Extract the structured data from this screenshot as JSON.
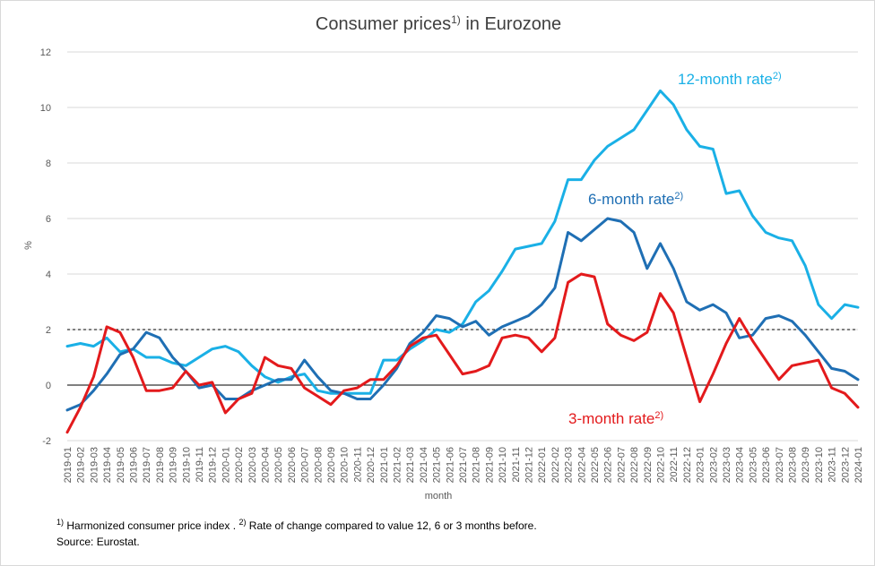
{
  "chart_data": {
    "type": "line",
    "title": "Consumer prices",
    "title_sup": "1)",
    "title_suffix": " in Eurozone",
    "xlabel": "month",
    "ylabel": "%",
    "ylim": [
      -2,
      12
    ],
    "yticks": [
      -2,
      0,
      2,
      4,
      6,
      8,
      10,
      12
    ],
    "grid": true,
    "reference_line": 2,
    "x": [
      "2019-01",
      "2019-02",
      "2019-03",
      "2019-04",
      "2019-05",
      "2019-06",
      "2019-07",
      "2019-08",
      "2019-09",
      "2019-10",
      "2019-11",
      "2019-12",
      "2020-01",
      "2020-02",
      "2020-03",
      "2020-04",
      "2020-05",
      "2020-06",
      "2020-07",
      "2020-08",
      "2020-09",
      "2020-10",
      "2020-11",
      "2020-12",
      "2021-01",
      "2021-02",
      "2021-03",
      "2021-04",
      "2021-05",
      "2021-06",
      "2021-07",
      "2021-08",
      "2021-09",
      "2021-10",
      "2021-11",
      "2021-12",
      "2022-01",
      "2022-02",
      "2022-03",
      "2022-04",
      "2022-05",
      "2022-06",
      "2022-07",
      "2022-08",
      "2022-09",
      "2022-10",
      "2022-11",
      "2022-12",
      "2023-01",
      "2023-02",
      "2023-03",
      "2023-04",
      "2023-05",
      "2023-06",
      "2023-07",
      "2023-08",
      "2023-09",
      "2023-10",
      "2023-11",
      "2023-12",
      "2024-01"
    ],
    "series": [
      {
        "name": "12-month rate",
        "label_sup": "2)",
        "color": "#1ab0e6",
        "values": [
          1.4,
          1.5,
          1.4,
          1.7,
          1.2,
          1.3,
          1.0,
          1.0,
          0.8,
          0.7,
          1.0,
          1.3,
          1.4,
          1.2,
          0.7,
          0.3,
          0.1,
          0.3,
          0.4,
          -0.2,
          -0.3,
          -0.3,
          -0.3,
          -0.3,
          0.9,
          0.9,
          1.3,
          1.6,
          2.0,
          1.9,
          2.2,
          3.0,
          3.4,
          4.1,
          4.9,
          5.0,
          5.1,
          5.9,
          7.4,
          7.4,
          8.1,
          8.6,
          8.9,
          9.2,
          9.9,
          10.6,
          10.1,
          9.2,
          8.6,
          8.5,
          6.9,
          7.0,
          6.1,
          5.5,
          5.3,
          5.2,
          4.3,
          2.9,
          2.4,
          2.9,
          2.8
        ]
      },
      {
        "name": "6-month rate",
        "label_sup": "2)",
        "color": "#1f6fb4",
        "values": [
          -0.9,
          -0.7,
          -0.2,
          0.4,
          1.1,
          1.3,
          1.9,
          1.7,
          1.0,
          0.5,
          -0.1,
          0.0,
          -0.5,
          -0.5,
          -0.2,
          0.0,
          0.2,
          0.2,
          0.9,
          0.3,
          -0.2,
          -0.3,
          -0.5,
          -0.5,
          0.0,
          0.6,
          1.5,
          1.9,
          2.5,
          2.4,
          2.1,
          2.3,
          1.8,
          2.1,
          2.3,
          2.5,
          2.9,
          3.5,
          5.5,
          5.2,
          5.6,
          6.0,
          5.9,
          5.5,
          4.2,
          5.1,
          4.2,
          3.0,
          2.7,
          2.9,
          2.6,
          1.7,
          1.8,
          2.4,
          2.5,
          2.3,
          1.8,
          1.2,
          0.6,
          0.5,
          0.2
        ]
      },
      {
        "name": "3-month rate",
        "label_sup": "2)",
        "color": "#e31a1c",
        "values": [
          -1.7,
          -0.8,
          0.3,
          2.1,
          1.9,
          1.0,
          -0.2,
          -0.2,
          -0.1,
          0.5,
          0.0,
          0.1,
          -1.0,
          -0.5,
          -0.3,
          1.0,
          0.7,
          0.6,
          -0.1,
          -0.4,
          -0.7,
          -0.2,
          -0.1,
          0.2,
          0.2,
          0.7,
          1.4,
          1.7,
          1.8,
          1.1,
          0.4,
          0.5,
          0.7,
          1.7,
          1.8,
          1.7,
          1.2,
          1.7,
          3.7,
          4.0,
          3.9,
          2.2,
          1.8,
          1.6,
          1.9,
          3.3,
          2.6,
          1.0,
          -0.6,
          0.4,
          1.5,
          2.4,
          1.6,
          0.9,
          0.2,
          0.7,
          0.8,
          0.9,
          -0.1,
          -0.3,
          -0.8
        ]
      }
    ]
  },
  "footnote": {
    "line1_sup_a": "1)",
    "line1_text_a": " Harmonized consumer price index . ",
    "line1_sup_b": "2)",
    "line1_text_b": " Rate of change compared to value 12, 6 or 3 months before.",
    "line2": "Source: Eurostat."
  }
}
